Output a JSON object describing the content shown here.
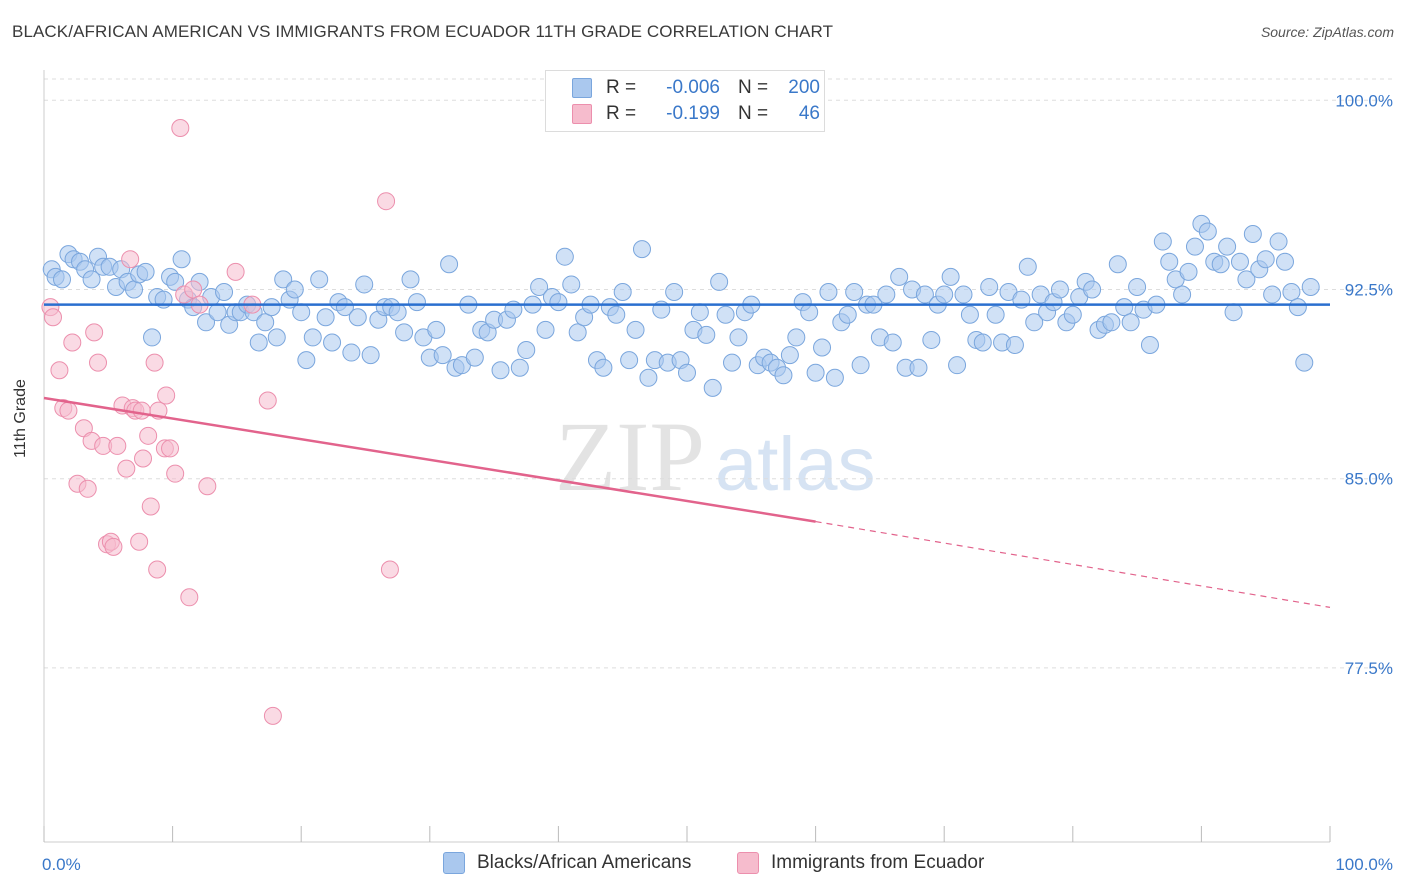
{
  "title": "BLACK/AFRICAN AMERICAN VS IMMIGRANTS FROM ECUADOR 11TH GRADE CORRELATION CHART",
  "source": "Source: ZipAtlas.com",
  "watermark": {
    "zip": "ZIP",
    "atlas": "atlas"
  },
  "legend": {
    "rows": [
      {
        "r_label": "R =",
        "r_value": "-0.006",
        "n_label": "N =",
        "n_value": "200"
      },
      {
        "r_label": "R =",
        "r_value": "-0.199",
        "n_label": "N =",
        "n_value": "46"
      }
    ]
  },
  "bottom_legend": {
    "blue": "Blacks/African Americans",
    "pink": "Immigrants from Ecuador"
  },
  "colors": {
    "blue_fill": "#aac8ee",
    "blue_stroke": "#7aa6dd",
    "blue_line": "#2a6fcf",
    "pink_fill": "#f6bccd",
    "pink_stroke": "#ec8fad",
    "pink_line": "#e2638c",
    "tick_label": "#3a78c9",
    "grid": "#dddddd"
  },
  "chart_data": {
    "type": "scatter",
    "title": "BLACK/AFRICAN AMERICAN VS IMMIGRANTS FROM ECUADOR 11TH GRADE CORRELATION CHART",
    "xlabel": "",
    "ylabel": "11th Grade",
    "xlim": [
      0,
      100
    ],
    "ylim": [
      70.6,
      101.2
    ],
    "x_tick_labels": [
      "0.0%",
      "100.0%"
    ],
    "y_ticks": [
      77.5,
      85.0,
      92.5,
      100.0
    ],
    "y_tick_labels": [
      "77.5%",
      "85.0%",
      "92.5%",
      "100.0%"
    ],
    "grid": true,
    "legend_position": "top-center",
    "series": [
      {
        "name": "Blacks/African Americans",
        "color": "#aac8ee",
        "trend": {
          "x": [
            0,
            100
          ],
          "y": [
            91.9,
            91.9
          ],
          "style": "solid"
        },
        "points": [
          [
            0.6,
            93.3
          ],
          [
            0.9,
            93.0
          ],
          [
            1.4,
            92.9
          ],
          [
            1.9,
            93.9
          ],
          [
            2.3,
            93.7
          ],
          [
            2.8,
            93.6
          ],
          [
            3.2,
            93.3
          ],
          [
            3.7,
            92.9
          ],
          [
            4.2,
            93.8
          ],
          [
            4.6,
            93.4
          ],
          [
            5.1,
            93.4
          ],
          [
            5.6,
            92.6
          ],
          [
            6.0,
            93.3
          ],
          [
            6.5,
            92.8
          ],
          [
            7.0,
            92.5
          ],
          [
            7.4,
            93.1
          ],
          [
            7.9,
            93.2
          ],
          [
            8.4,
            90.6
          ],
          [
            8.8,
            92.2
          ],
          [
            9.3,
            92.1
          ],
          [
            9.8,
            93.0
          ],
          [
            10.2,
            92.8
          ],
          [
            10.7,
            93.7
          ],
          [
            11.2,
            92.1
          ],
          [
            11.6,
            91.8
          ],
          [
            12.1,
            92.8
          ],
          [
            12.6,
            91.2
          ],
          [
            13.0,
            92.2
          ],
          [
            13.5,
            91.6
          ],
          [
            14.0,
            92.4
          ],
          [
            14.4,
            91.1
          ],
          [
            14.9,
            91.6
          ],
          [
            15.3,
            91.6
          ],
          [
            15.8,
            91.9
          ],
          [
            16.3,
            91.6
          ],
          [
            16.7,
            90.4
          ],
          [
            17.2,
            91.2
          ],
          [
            17.7,
            91.8
          ],
          [
            18.1,
            90.6
          ],
          [
            18.6,
            92.9
          ],
          [
            19.1,
            92.1
          ],
          [
            19.5,
            92.5
          ],
          [
            20.0,
            91.6
          ],
          [
            20.4,
            89.7
          ],
          [
            20.9,
            90.6
          ],
          [
            21.4,
            92.9
          ],
          [
            21.9,
            91.4
          ],
          [
            22.4,
            90.4
          ],
          [
            22.9,
            92.0
          ],
          [
            23.4,
            91.8
          ],
          [
            23.9,
            90.0
          ],
          [
            24.4,
            91.4
          ],
          [
            24.9,
            92.7
          ],
          [
            25.4,
            89.9
          ],
          [
            26.0,
            91.3
          ],
          [
            26.5,
            91.8
          ],
          [
            27.0,
            91.8
          ],
          [
            27.5,
            91.6
          ],
          [
            28.0,
            90.8
          ],
          [
            28.5,
            92.9
          ],
          [
            29.0,
            92.0
          ],
          [
            29.5,
            90.6
          ],
          [
            30.0,
            89.8
          ],
          [
            30.5,
            90.9
          ],
          [
            31.0,
            89.9
          ],
          [
            31.5,
            93.5
          ],
          [
            32.0,
            89.4
          ],
          [
            32.5,
            89.5
          ],
          [
            33.0,
            91.9
          ],
          [
            33.5,
            89.8
          ],
          [
            34.0,
            90.9
          ],
          [
            34.5,
            90.8
          ],
          [
            35.0,
            91.3
          ],
          [
            35.5,
            89.3
          ],
          [
            36.0,
            91.3
          ],
          [
            36.5,
            91.7
          ],
          [
            37.0,
            89.4
          ],
          [
            37.5,
            90.1
          ],
          [
            38.0,
            91.9
          ],
          [
            38.5,
            92.6
          ],
          [
            39.0,
            90.9
          ],
          [
            39.5,
            92.2
          ],
          [
            40.0,
            92.0
          ],
          [
            40.5,
            93.8
          ],
          [
            41.0,
            92.7
          ],
          [
            41.5,
            90.8
          ],
          [
            42.0,
            91.4
          ],
          [
            42.5,
            91.9
          ],
          [
            43.0,
            89.7
          ],
          [
            43.5,
            89.4
          ],
          [
            44.0,
            91.8
          ],
          [
            44.5,
            91.5
          ],
          [
            45.0,
            92.4
          ],
          [
            45.5,
            89.7
          ],
          [
            46.0,
            90.9
          ],
          [
            46.5,
            94.1
          ],
          [
            47.0,
            89.0
          ],
          [
            47.5,
            89.7
          ],
          [
            48.0,
            91.7
          ],
          [
            48.5,
            89.6
          ],
          [
            49.0,
            92.4
          ],
          [
            49.5,
            89.7
          ],
          [
            50.0,
            89.2
          ],
          [
            50.5,
            90.9
          ],
          [
            51.0,
            91.6
          ],
          [
            51.5,
            90.7
          ],
          [
            52.0,
            88.6
          ],
          [
            52.5,
            92.8
          ],
          [
            53.0,
            91.5
          ],
          [
            53.5,
            89.6
          ],
          [
            54.0,
            90.6
          ],
          [
            54.5,
            91.6
          ],
          [
            55.0,
            91.9
          ],
          [
            55.5,
            89.5
          ],
          [
            56.0,
            89.8
          ],
          [
            56.5,
            89.6
          ],
          [
            57.0,
            89.4
          ],
          [
            57.5,
            89.1
          ],
          [
            58.0,
            89.9
          ],
          [
            58.5,
            90.6
          ],
          [
            59.0,
            92.0
          ],
          [
            59.5,
            91.6
          ],
          [
            60.0,
            89.2
          ],
          [
            60.5,
            90.2
          ],
          [
            61.0,
            92.4
          ],
          [
            61.5,
            89.0
          ],
          [
            62.0,
            91.2
          ],
          [
            62.5,
            91.5
          ],
          [
            63.0,
            92.4
          ],
          [
            63.5,
            89.5
          ],
          [
            64.0,
            91.9
          ],
          [
            64.5,
            91.9
          ],
          [
            65.0,
            90.6
          ],
          [
            65.5,
            92.3
          ],
          [
            66.0,
            90.4
          ],
          [
            66.5,
            93.0
          ],
          [
            67.0,
            89.4
          ],
          [
            67.5,
            92.5
          ],
          [
            68.0,
            89.4
          ],
          [
            68.5,
            92.3
          ],
          [
            69.0,
            90.5
          ],
          [
            69.5,
            91.9
          ],
          [
            70.0,
            92.3
          ],
          [
            70.5,
            93.0
          ],
          [
            71.0,
            89.5
          ],
          [
            71.5,
            92.3
          ],
          [
            72.0,
            91.5
          ],
          [
            72.5,
            90.5
          ],
          [
            73.0,
            90.4
          ],
          [
            73.5,
            92.6
          ],
          [
            74.0,
            91.5
          ],
          [
            74.5,
            90.4
          ],
          [
            75.0,
            92.4
          ],
          [
            75.5,
            90.3
          ],
          [
            76.0,
            92.1
          ],
          [
            76.5,
            93.4
          ],
          [
            77.0,
            91.2
          ],
          [
            77.5,
            92.3
          ],
          [
            78.0,
            91.6
          ],
          [
            78.5,
            92.0
          ],
          [
            79.0,
            92.5
          ],
          [
            79.5,
            91.2
          ],
          [
            80.0,
            91.5
          ],
          [
            80.5,
            92.2
          ],
          [
            81.0,
            92.8
          ],
          [
            81.5,
            92.5
          ],
          [
            82.0,
            90.9
          ],
          [
            82.5,
            91.1
          ],
          [
            83.0,
            91.2
          ],
          [
            83.5,
            93.5
          ],
          [
            84.0,
            91.8
          ],
          [
            84.5,
            91.2
          ],
          [
            85.0,
            92.6
          ],
          [
            85.5,
            91.7
          ],
          [
            86.0,
            90.3
          ],
          [
            86.5,
            91.9
          ],
          [
            87.0,
            94.4
          ],
          [
            87.5,
            93.6
          ],
          [
            88.0,
            92.9
          ],
          [
            88.5,
            92.3
          ],
          [
            89.0,
            93.2
          ],
          [
            89.5,
            94.2
          ],
          [
            90.0,
            95.1
          ],
          [
            90.5,
            94.8
          ],
          [
            91.0,
            93.6
          ],
          [
            91.5,
            93.5
          ],
          [
            92.0,
            94.2
          ],
          [
            92.5,
            91.6
          ],
          [
            93.0,
            93.6
          ],
          [
            93.5,
            92.9
          ],
          [
            94.0,
            94.7
          ],
          [
            94.5,
            93.3
          ],
          [
            95.0,
            93.7
          ],
          [
            95.5,
            92.3
          ],
          [
            96.0,
            94.4
          ],
          [
            96.5,
            93.6
          ],
          [
            97.0,
            92.4
          ],
          [
            97.5,
            91.8
          ],
          [
            98.0,
            89.6
          ],
          [
            98.5,
            92.6
          ]
        ]
      },
      {
        "name": "Immigrants from Ecuador",
        "color": "#f6bccd",
        "trend": {
          "x": [
            0,
            60
          ],
          "y": [
            88.2,
            83.3
          ],
          "style": "solid",
          "dashed_to": [
            100,
            79.9
          ]
        },
        "points": [
          [
            0.5,
            91.8
          ],
          [
            0.7,
            91.4
          ],
          [
            1.2,
            89.3
          ],
          [
            1.5,
            87.8
          ],
          [
            1.9,
            87.7
          ],
          [
            2.2,
            90.4
          ],
          [
            2.6,
            84.8
          ],
          [
            3.1,
            87.0
          ],
          [
            3.4,
            84.6
          ],
          [
            3.7,
            86.5
          ],
          [
            3.9,
            90.8
          ],
          [
            4.2,
            89.6
          ],
          [
            4.6,
            86.3
          ],
          [
            4.9,
            82.4
          ],
          [
            5.2,
            82.5
          ],
          [
            5.4,
            82.3
          ],
          [
            5.7,
            86.3
          ],
          [
            6.1,
            87.9
          ],
          [
            6.4,
            85.4
          ],
          [
            6.7,
            93.7
          ],
          [
            6.9,
            87.8
          ],
          [
            7.1,
            87.7
          ],
          [
            7.4,
            82.5
          ],
          [
            7.6,
            87.7
          ],
          [
            7.7,
            85.8
          ],
          [
            8.1,
            86.7
          ],
          [
            8.3,
            83.9
          ],
          [
            8.6,
            89.6
          ],
          [
            8.9,
            87.7
          ],
          [
            8.8,
            81.4
          ],
          [
            9.4,
            86.2
          ],
          [
            9.5,
            88.3
          ],
          [
            9.8,
            86.2
          ],
          [
            10.2,
            85.2
          ],
          [
            10.6,
            98.9
          ],
          [
            10.9,
            92.3
          ],
          [
            11.3,
            80.3
          ],
          [
            11.6,
            92.5
          ],
          [
            12.1,
            91.9
          ],
          [
            12.7,
            84.7
          ],
          [
            14.9,
            93.2
          ],
          [
            16.2,
            91.9
          ],
          [
            17.4,
            88.1
          ],
          [
            17.8,
            75.6
          ],
          [
            26.6,
            96.0
          ],
          [
            26.9,
            81.4
          ]
        ]
      }
    ]
  }
}
